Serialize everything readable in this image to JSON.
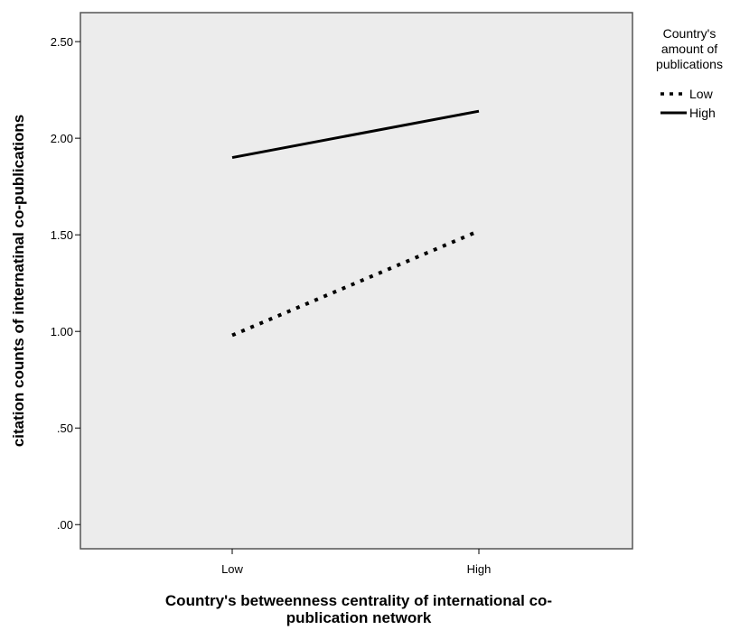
{
  "chart_data": {
    "type": "line",
    "xlabel_lines": [
      "Country's betweenness centrality of international co-",
      "publication network"
    ],
    "ylabel": "citation counts of internatinal co-publications",
    "categories": [
      "Low",
      "High"
    ],
    "ylim": [
      -0.125,
      2.65
    ],
    "y_ticks": [
      ".00",
      ".50",
      "1.00",
      "1.50",
      "2.00",
      "2.50"
    ],
    "y_tick_values": [
      0,
      0.5,
      1.0,
      1.5,
      2.0,
      2.5
    ],
    "legend_title_lines": [
      "Country's",
      "amount of",
      "publications"
    ],
    "legend_position": "top-right, outside plot",
    "grid": false,
    "plot_background": "#ececec",
    "series": [
      {
        "name": "Low",
        "values": [
          0.98,
          1.52
        ],
        "style": "dotted",
        "color": "#000000"
      },
      {
        "name": "High",
        "values": [
          1.9,
          2.14
        ],
        "style": "solid",
        "color": "#000000"
      }
    ]
  }
}
